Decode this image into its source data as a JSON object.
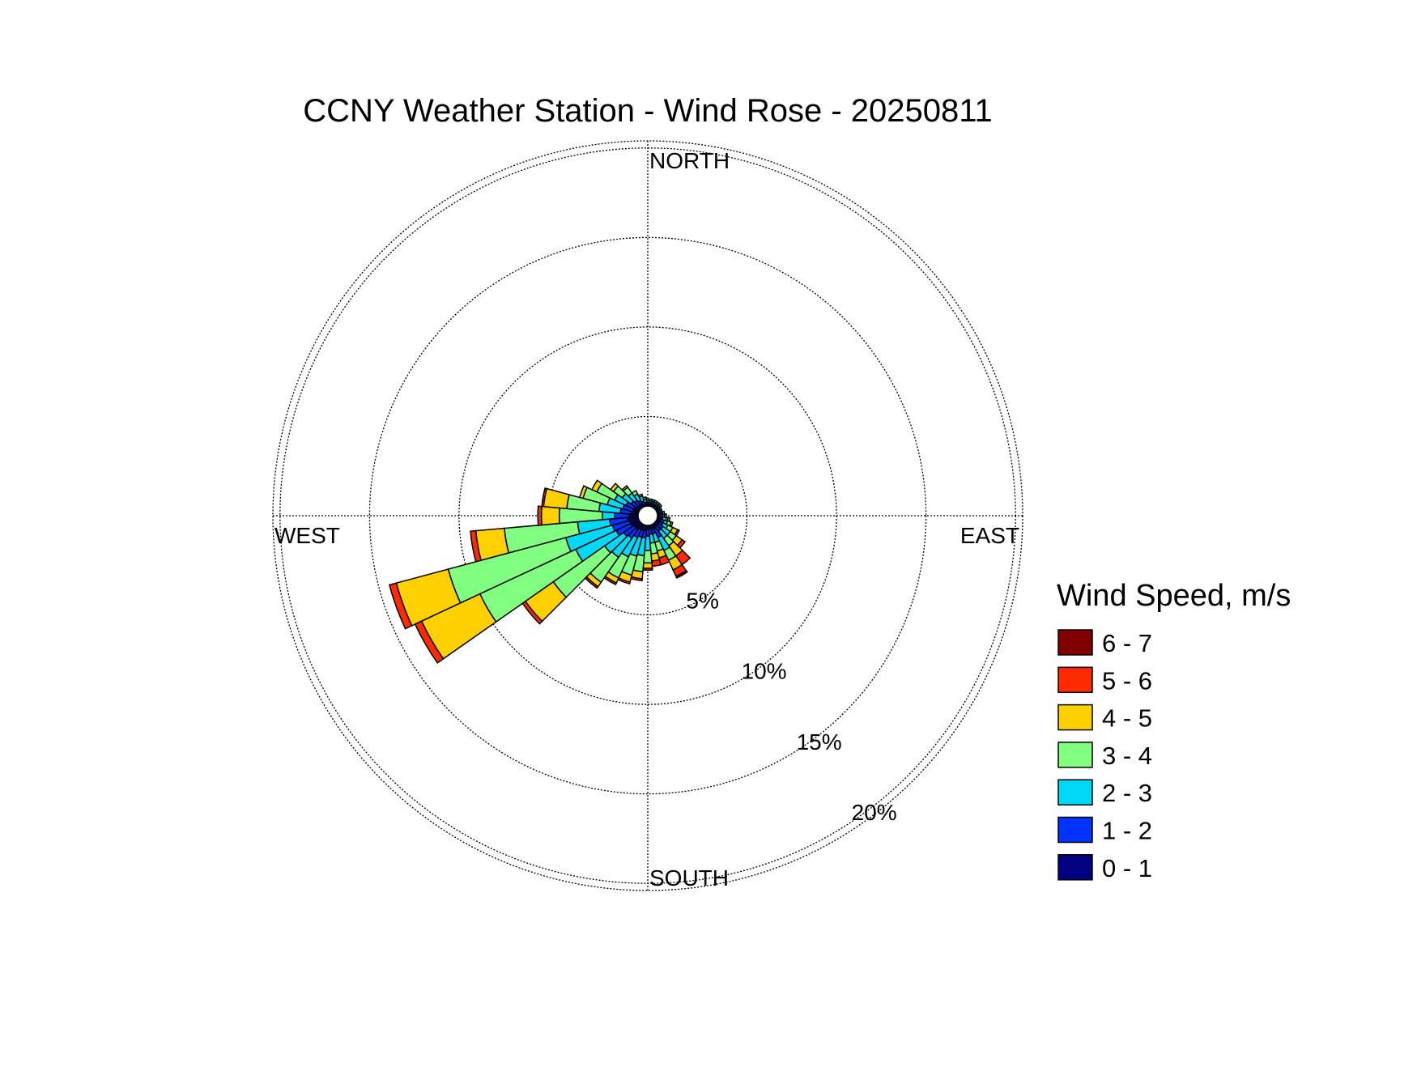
{
  "chart_data": {
    "type": "windrose",
    "title": "CCNY Weather Station - Wind Rose - 20250811",
    "direction_labels": {
      "north": "NORTH",
      "east": "EAST",
      "south": "SOUTH",
      "west": "WEST"
    },
    "radial_ticks": [
      "5%",
      "10%",
      "15%",
      "20%"
    ],
    "radial_max_pct": 20,
    "legend_title": "Wind Speed, m/s",
    "bins": [
      {
        "label": "0 - 1",
        "color": "#000080"
      },
      {
        "label": "1 - 2",
        "color": "#0033ff"
      },
      {
        "label": "2 - 3",
        "color": "#00d8f8"
      },
      {
        "label": "3 - 4",
        "color": "#80ff80"
      },
      {
        "label": "4 - 5",
        "color": "#ffd000"
      },
      {
        "label": "5 - 6",
        "color": "#ff2a00"
      },
      {
        "label": "6 - 7",
        "color": "#800000"
      }
    ],
    "sector_width_deg": 10,
    "sectors": [
      {
        "dir": 260,
        "cum": [
          0.6,
          1.6,
          3.4,
          7.5,
          9.1,
          9.4,
          9.4
        ]
      },
      {
        "dir": 250,
        "cum": [
          0.5,
          1.5,
          4.2,
          11.0,
          14.0,
          14.4,
          14.4
        ]
      },
      {
        "dir": 240,
        "cum": [
          0.5,
          1.4,
          3.9,
          9.8,
          13.4,
          13.8,
          13.8
        ]
      },
      {
        "dir": 230,
        "cum": [
          0.4,
          1.1,
          2.4,
          5.9,
          7.8,
          8.0,
          8.0
        ]
      },
      {
        "dir": 270,
        "cum": [
          0.5,
          1.3,
          2.0,
          4.4,
          5.4,
          5.6,
          5.6
        ]
      },
      {
        "dir": 220,
        "cum": [
          0.4,
          1.0,
          2.3,
          4.0,
          4.3,
          4.4,
          4.4
        ]
      },
      {
        "dir": 210,
        "cum": [
          0.3,
          0.8,
          2.0,
          3.3,
          3.6,
          3.7,
          3.7
        ]
      },
      {
        "dir": 200,
        "cum": [
          0.3,
          0.7,
          1.8,
          2.9,
          3.3,
          3.4,
          3.4
        ]
      },
      {
        "dir": 190,
        "cum": [
          0.3,
          0.7,
          1.7,
          2.6,
          3.0,
          3.1,
          3.1
        ]
      },
      {
        "dir": 180,
        "cum": [
          0.2,
          0.6,
          1.4,
          2.1,
          2.4,
          2.5,
          2.5
        ]
      },
      {
        "dir": 170,
        "cum": [
          0.2,
          0.5,
          1.0,
          1.6,
          2.0,
          2.3,
          2.3
        ]
      },
      {
        "dir": 160,
        "cum": [
          0.2,
          0.5,
          1.0,
          1.5,
          1.9,
          2.3,
          2.3
        ]
      },
      {
        "dir": 150,
        "cum": [
          0.3,
          0.8,
          1.6,
          2.2,
          2.8,
          3.2,
          3.3
        ]
      },
      {
        "dir": 140,
        "cum": [
          0.2,
          0.5,
          1.0,
          1.5,
          2.2,
          2.8,
          2.8
        ]
      },
      {
        "dir": 130,
        "cum": [
          0.2,
          0.5,
          1.0,
          1.4,
          1.8,
          2.0,
          2.0
        ]
      },
      {
        "dir": 120,
        "cum": [
          0.2,
          0.4,
          0.7,
          1.0,
          1.3,
          1.4,
          1.4
        ]
      },
      {
        "dir": 110,
        "cum": [
          0.2,
          0.4,
          0.6,
          0.8,
          0.9,
          0.9,
          0.9
        ]
      },
      {
        "dir": 100,
        "cum": [
          0.2,
          0.3,
          0.5,
          0.6,
          0.7,
          0.7,
          0.7
        ]
      },
      {
        "dir": 90,
        "cum": [
          0.1,
          0.3,
          0.4,
          0.5,
          0.5,
          0.5,
          0.5
        ]
      },
      {
        "dir": 80,
        "cum": [
          0.1,
          0.2,
          0.3,
          0.4,
          0.4,
          0.4,
          0.4
        ]
      },
      {
        "dir": 70,
        "cum": [
          0.1,
          0.2,
          0.3,
          0.3,
          0.3,
          0.3,
          0.3
        ]
      },
      {
        "dir": 60,
        "cum": [
          0.1,
          0.2,
          0.3,
          0.3,
          0.3,
          0.3,
          0.3
        ]
      },
      {
        "dir": 50,
        "cum": [
          0.1,
          0.2,
          0.3,
          0.4,
          0.4,
          0.4,
          0.4
        ]
      },
      {
        "dir": 40,
        "cum": [
          0.1,
          0.2,
          0.3,
          0.4,
          0.4,
          0.4,
          0.4
        ]
      },
      {
        "dir": 30,
        "cum": [
          0.1,
          0.2,
          0.3,
          0.4,
          0.4,
          0.4,
          0.4
        ]
      },
      {
        "dir": 20,
        "cum": [
          0.1,
          0.2,
          0.3,
          0.4,
          0.4,
          0.4,
          0.4
        ]
      },
      {
        "dir": 10,
        "cum": [
          0.1,
          0.2,
          0.3,
          0.4,
          0.4,
          0.4,
          0.4
        ]
      },
      {
        "dir": 0,
        "cum": [
          0.1,
          0.2,
          0.3,
          0.4,
          0.4,
          0.4,
          0.4
        ]
      },
      {
        "dir": 350,
        "cum": [
          0.1,
          0.2,
          0.4,
          0.5,
          0.5,
          0.5,
          0.5
        ]
      },
      {
        "dir": 340,
        "cum": [
          0.1,
          0.3,
          0.6,
          0.7,
          0.7,
          0.7,
          0.7
        ]
      },
      {
        "dir": 330,
        "cum": [
          0.2,
          0.4,
          0.8,
          1.0,
          1.0,
          1.0,
          1.0
        ]
      },
      {
        "dir": 320,
        "cum": [
          0.2,
          0.5,
          1.0,
          1.4,
          1.5,
          1.5,
          1.5
        ]
      },
      {
        "dir": 310,
        "cum": [
          0.2,
          0.6,
          1.2,
          1.8,
          2.0,
          2.0,
          2.0
        ]
      },
      {
        "dir": 300,
        "cum": [
          0.3,
          0.8,
          1.5,
          2.6,
          2.9,
          2.9,
          2.9
        ]
      },
      {
        "dir": 290,
        "cum": [
          0.3,
          0.9,
          1.8,
          3.2,
          3.4,
          3.4,
          3.4
        ]
      },
      {
        "dir": 280,
        "cum": [
          0.4,
          1.0,
          2.2,
          4.0,
          5.3,
          5.4,
          5.4
        ]
      }
    ]
  }
}
